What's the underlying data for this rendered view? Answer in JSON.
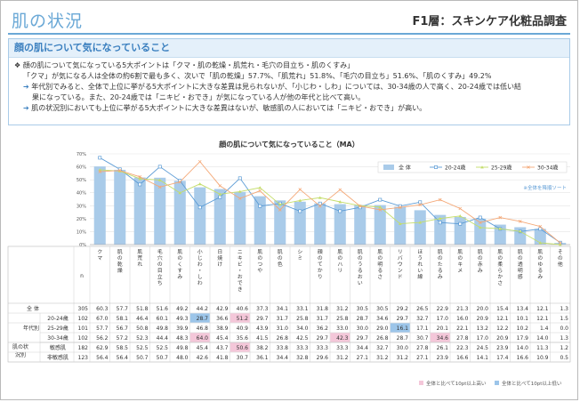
{
  "header": {
    "title": "肌の状況",
    "subtitle": "F1層：スキンケア化粧品調査"
  },
  "summary": {
    "heading": "顔の肌について気になっていること",
    "bullet1": "顔の肌について気になっている5大ポイントは「クマ・肌の乾燥・肌荒れ・毛穴の目立ち・肌のくすみ」",
    "bullet1b": "「クマ」が気になる人は全体の約6割で最も多く、次いで「肌の乾燥」57.7%、「肌荒れ」51.8%、「毛穴の目立ち」51.6%、「肌のくすみ」49.2%",
    "arrow1": "年代別でみると、全体で上位に挙がる5大ポイントに大きな差異は見られないが、「小じわ・しわ」については、30-34歳の人で高く、20-24歳では低い結",
    "arrow1b": "果になっている。また、20-24歳では「ニキビ・おでき」が気になっている人が他の年代と比べて高い。",
    "arrow2": "肌の状況別においても上位に挙がる5大ポイントに大きな差異はないが、敏感肌の人においては「ニキビ・おでき」が高い。"
  },
  "chart_data": {
    "type": "bar",
    "title": "顔の肌について気になっていること（MA）",
    "ylim": [
      0,
      70
    ],
    "yticks": [
      "0%",
      "10%",
      "20%",
      "30%",
      "40%",
      "50%",
      "60%",
      "70%"
    ],
    "sort_note": "※全体を降順ソート",
    "legend": [
      "全 体",
      "20-24歳",
      "25-29歳",
      "30-34歳"
    ],
    "colors": {
      "total": "#a9cbe9",
      "age20": "#5b9bd5",
      "age25": "#c4dd6b",
      "age30": "#f4a877"
    },
    "categories": [
      "クマ",
      "肌の乾燥",
      "肌荒れ",
      "毛穴の目立ち",
      "肌のくすみ",
      "小じわ・しわ",
      "日焼け",
      "ニキビ・おでき",
      "肌のつや",
      "肌の色",
      "シミ",
      "顔のてかり",
      "肌のハリ",
      "肌のうるおい",
      "肌の明るさ",
      "リバウンド",
      "ほうれい線",
      "肌のたるみ",
      "肌のキメ",
      "肌の赤み",
      "肌の柔らかさ",
      "肌の透明感",
      "肌のゆるみ",
      "その他"
    ],
    "series": [
      {
        "name": "全 体",
        "values": [
          60.3,
          57.7,
          51.8,
          51.6,
          49.2,
          44.2,
          42.9,
          40.6,
          37.3,
          34.1,
          33.1,
          31.8,
          31.2,
          30.5,
          30.5,
          29.2,
          26.5,
          22.9,
          21.3,
          20.0,
          15.4,
          13.4,
          12.1,
          1.3
        ]
      },
      {
        "name": "20-24歳",
        "values": [
          67.0,
          58.1,
          46.4,
          60.1,
          49.3,
          28.7,
          36.6,
          51.2,
          29.7,
          31.7,
          25.8,
          31.7,
          25.8,
          28.7,
          34.6,
          29.7,
          32.7,
          17.0,
          16.0,
          20.9,
          12.1,
          10.1,
          12.1,
          1.5
        ]
      },
      {
        "name": "25-29歳",
        "values": [
          57.7,
          56.7,
          50.8,
          49.8,
          39.9,
          46.8,
          38.9,
          40.9,
          43.9,
          31.0,
          34.0,
          36.2,
          33.0,
          30.0,
          29.0,
          16.1,
          17.1,
          20.1,
          22.1,
          13.2,
          12.2,
          10.2,
          1.4,
          0
        ]
      },
      {
        "name": "30-34歳",
        "values": [
          56.2,
          57.2,
          52.3,
          44.4,
          48.3,
          64.0,
          45.4,
          35.6,
          41.5,
          26.8,
          42.5,
          29.7,
          42.3,
          29.7,
          26.8,
          28.7,
          30.7,
          34.6,
          27.8,
          17.0,
          20.9,
          17.9,
          14.0,
          1.3
        ]
      }
    ]
  },
  "table": {
    "n_label": "n",
    "group_age": "年代別",
    "group_skin": "肌の状況別",
    "rows": [
      {
        "label": "全 体",
        "n": "305",
        "values": [
          "60.3",
          "57.7",
          "51.8",
          "51.6",
          "49.2",
          "44.2",
          "42.9",
          "40.6",
          "37.3",
          "34.1",
          "33.1",
          "31.8",
          "31.2",
          "30.5",
          "30.5",
          "29.2",
          "26.5",
          "22.9",
          "21.3",
          "20.0",
          "15.4",
          "13.4",
          "12.1",
          "1.3"
        ]
      },
      {
        "label": "20-24歳",
        "n": "102",
        "values": [
          "67.0",
          "58.1",
          "46.4",
          "60.1",
          "49.3",
          "28.7",
          "36.6",
          "51.2",
          "29.7",
          "31.7",
          "25.8",
          "31.7",
          "25.8",
          "28.7",
          "34.6",
          "29.7",
          "32.7",
          "17.0",
          "16.0",
          "20.9",
          "12.1",
          "10.1",
          "12.1",
          "1.5"
        ]
      },
      {
        "label": "25-29歳",
        "n": "101",
        "values": [
          "57.7",
          "56.7",
          "50.8",
          "49.8",
          "39.9",
          "46.8",
          "38.9",
          "40.9",
          "43.9",
          "31.0",
          "34.0",
          "36.2",
          "33.0",
          "30.0",
          "29.0",
          "16.1",
          "17.1",
          "20.1",
          "22.1",
          "13.2",
          "12.2",
          "10.2",
          "1.4",
          "0.0"
        ]
      },
      {
        "label": "30-34歳",
        "n": "102",
        "values": [
          "56.2",
          "57.2",
          "52.3",
          "44.4",
          "48.3",
          "64.0",
          "45.4",
          "35.6",
          "41.5",
          "26.8",
          "42.5",
          "29.7",
          "42.3",
          "29.7",
          "26.8",
          "28.7",
          "30.7",
          "34.6",
          "27.8",
          "17.0",
          "20.9",
          "17.9",
          "14.0",
          "1.3"
        ]
      },
      {
        "label": "敏感肌",
        "n": "182",
        "values": [
          "62.9",
          "58.5",
          "52.5",
          "52.5",
          "49.8",
          "45.4",
          "43.7",
          "50.6",
          "38.2",
          "33.8",
          "33.3",
          "33.3",
          "33.3",
          "34.4",
          "32.7",
          "30.0",
          "27.8",
          "26.1",
          "22.3",
          "24.5",
          "23.9",
          "14.0",
          "11.3",
          "1.2"
        ]
      },
      {
        "label": "非敏感肌",
        "n": "123",
        "values": [
          "56.4",
          "56.4",
          "50.7",
          "50.7",
          "48.0",
          "42.6",
          "41.8",
          "30.7",
          "36.1",
          "34.4",
          "32.8",
          "29.6",
          "31.2",
          "27.1",
          "31.2",
          "31.2",
          "27.1",
          "23.9",
          "16.6",
          "14.1",
          "17.4",
          "16.6",
          "10.9",
          "0.5"
        ]
      }
    ],
    "highlights": [
      {
        "row": 1,
        "col": 5,
        "type": "low"
      },
      {
        "row": 1,
        "col": 7,
        "type": "high"
      },
      {
        "row": 2,
        "col": 15,
        "type": "low"
      },
      {
        "row": 3,
        "col": 5,
        "type": "high"
      },
      {
        "row": 3,
        "col": 12,
        "type": "high"
      },
      {
        "row": 3,
        "col": 17,
        "type": "high"
      },
      {
        "row": 4,
        "col": 7,
        "type": "high"
      }
    ],
    "note_high": "全体と比べて10pt以上高い",
    "note_low": "全体と比べて10pt以上低い",
    "high_color": "#f4c7d9",
    "low_color": "#9cc5e9"
  }
}
